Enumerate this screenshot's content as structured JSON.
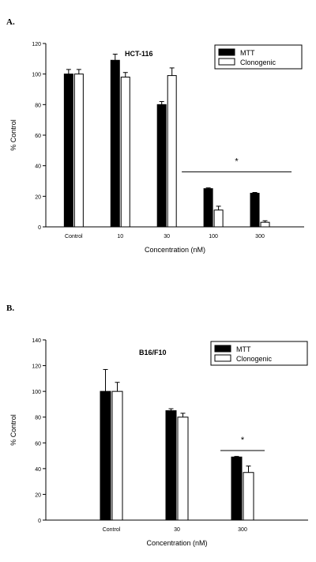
{
  "chart_data": [
    {
      "type": "bar",
      "panel_label": "A.",
      "title": "HCT-116",
      "categories": [
        "Control",
        "10",
        "30",
        "100",
        "300"
      ],
      "xlabel": "Concentration (nM)",
      "ylabel": "% Control",
      "ylim": [
        0,
        120
      ],
      "yticks": [
        "0",
        "20",
        "40",
        "60",
        "80",
        "100",
        "120"
      ],
      "legend_position": "top-right",
      "series": [
        {
          "name": "MTT",
          "values": [
            100,
            109,
            80,
            25,
            22
          ],
          "errors": [
            3,
            4,
            2,
            0.5,
            0.5
          ],
          "fill": "#000000"
        },
        {
          "name": "Clonogenic",
          "values": [
            100,
            98,
            99,
            11,
            3
          ],
          "errors": [
            3,
            3,
            5,
            2.5,
            1
          ],
          "fill": "#ffffff"
        }
      ],
      "annotation": {
        "text": "*",
        "from_category": 3,
        "to_category": 4,
        "y": 36
      }
    },
    {
      "type": "bar",
      "panel_label": "B.",
      "title": "B16/F10",
      "categories": [
        "Control",
        "30",
        "300"
      ],
      "xlabel": "Concentration (nM)",
      "ylabel": "% Control",
      "ylim": [
        0,
        140
      ],
      "yticks": [
        "0",
        "20",
        "40",
        "60",
        "80",
        "100",
        "120",
        "140"
      ],
      "legend_position": "top-right",
      "series": [
        {
          "name": "MTT",
          "values": [
            100,
            85,
            49
          ],
          "errors": [
            17,
            1.5,
            0.5
          ],
          "fill": "#000000"
        },
        {
          "name": "Clonogenic",
          "values": [
            100,
            80,
            37
          ],
          "errors": [
            7,
            3,
            5
          ],
          "fill": "#ffffff"
        }
      ],
      "annotation": {
        "text": "*",
        "from_category": 2,
        "to_category": 2,
        "y": 54
      }
    }
  ]
}
